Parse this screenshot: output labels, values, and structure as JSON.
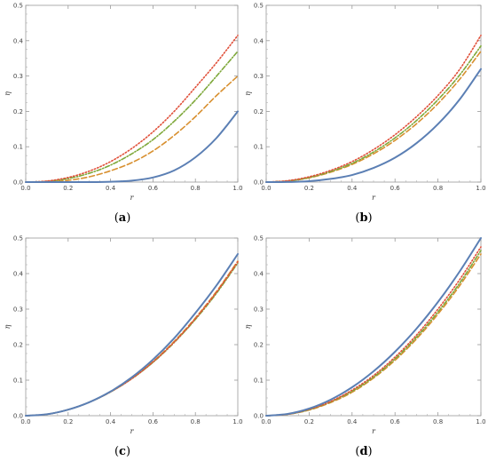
{
  "figure": {
    "panel_labels": [
      {
        "open": "(",
        "letter": "a",
        "close": ")"
      },
      {
        "open": "(",
        "letter": "b",
        "close": ")"
      },
      {
        "open": "(",
        "letter": "c",
        "close": ")"
      },
      {
        "open": "(",
        "letter": "d",
        "close": ")"
      }
    ]
  },
  "chart_data": [
    {
      "type": "line",
      "xlabel": "r",
      "ylabel": "η",
      "xlim": [
        0,
        1
      ],
      "ylim": [
        0,
        0.5
      ],
      "xticks": [
        0.0,
        0.2,
        0.4,
        0.6,
        0.8,
        1.0
      ],
      "xtick_labels": [
        "0.0",
        "0.2",
        "0.4",
        "0.6",
        "0.8",
        "1.0"
      ],
      "yticks": [
        0.0,
        0.1,
        0.2,
        0.3,
        0.4,
        0.5
      ],
      "ytick_labels": [
        "0.0",
        "0.1",
        "0.2",
        "0.3",
        "0.4",
        "0.5"
      ],
      "grid": false,
      "x": [
        0.0,
        0.1,
        0.2,
        0.3,
        0.4,
        0.5,
        0.6,
        0.7,
        0.8,
        0.9,
        1.0
      ],
      "series": [
        {
          "style": "solid",
          "color": "#5b7fb4",
          "values": [
            0,
            0,
            0,
            0,
            0.001,
            0.004,
            0.013,
            0.033,
            0.07,
            0.125,
            0.2
          ]
        },
        {
          "style": "dashed",
          "color": "#d89030",
          "values": [
            0,
            0.001,
            0.005,
            0.015,
            0.032,
            0.055,
            0.088,
            0.132,
            0.185,
            0.245,
            0.3
          ]
        },
        {
          "style": "dashdot",
          "color": "#7ea83a",
          "values": [
            0,
            0.002,
            0.01,
            0.025,
            0.048,
            0.08,
            0.12,
            0.172,
            0.232,
            0.3,
            0.37
          ]
        },
        {
          "style": "dotted",
          "color": "#e0503a",
          "values": [
            0,
            0.003,
            0.013,
            0.031,
            0.058,
            0.095,
            0.142,
            0.2,
            0.268,
            0.338,
            0.415
          ]
        }
      ]
    },
    {
      "type": "line",
      "xlabel": "r",
      "ylabel": "η",
      "xlim": [
        0,
        1
      ],
      "ylim": [
        0,
        0.5
      ],
      "xticks": [
        0.0,
        0.2,
        0.4,
        0.6,
        0.8,
        1.0
      ],
      "xtick_labels": [
        "0.0",
        "0.2",
        "0.4",
        "0.6",
        "0.8",
        "1.0"
      ],
      "yticks": [
        0.0,
        0.1,
        0.2,
        0.3,
        0.4,
        0.5
      ],
      "ytick_labels": [
        "0.0",
        "0.1",
        "0.2",
        "0.3",
        "0.4",
        "0.5"
      ],
      "grid": false,
      "x": [
        0.0,
        0.1,
        0.2,
        0.3,
        0.4,
        0.5,
        0.6,
        0.7,
        0.8,
        0.9,
        1.0
      ],
      "series": [
        {
          "style": "solid",
          "color": "#5b7fb4",
          "values": [
            0,
            0.0003,
            0.0026,
            0.009,
            0.02,
            0.04,
            0.069,
            0.11,
            0.164,
            0.233,
            0.32
          ]
        },
        {
          "style": "dashed",
          "color": "#d89030",
          "values": [
            0,
            0.003,
            0.012,
            0.028,
            0.05,
            0.08,
            0.118,
            0.165,
            0.222,
            0.29,
            0.37
          ]
        },
        {
          "style": "dashdot",
          "color": "#7ea83a",
          "values": [
            0,
            0.003,
            0.013,
            0.03,
            0.053,
            0.085,
            0.125,
            0.174,
            0.233,
            0.302,
            0.385
          ]
        },
        {
          "style": "dotted",
          "color": "#e0503a",
          "values": [
            0,
            0.004,
            0.015,
            0.033,
            0.058,
            0.092,
            0.134,
            0.185,
            0.245,
            0.318,
            0.415
          ]
        }
      ]
    },
    {
      "type": "line",
      "xlabel": "r",
      "ylabel": "η",
      "xlim": [
        0,
        1
      ],
      "ylim": [
        0,
        0.5
      ],
      "xticks": [
        0.0,
        0.2,
        0.4,
        0.6,
        0.8,
        1.0
      ],
      "xtick_labels": [
        "0.0",
        "0.2",
        "0.4",
        "0.6",
        "0.8",
        "1.0"
      ],
      "yticks": [
        0.0,
        0.1,
        0.2,
        0.3,
        0.4,
        0.5
      ],
      "ytick_labels": [
        "0.0",
        "0.1",
        "0.2",
        "0.3",
        "0.4",
        "0.5"
      ],
      "grid": false,
      "x": [
        0.0,
        0.1,
        0.2,
        0.3,
        0.4,
        0.5,
        0.6,
        0.7,
        0.8,
        0.9,
        1.0
      ],
      "series": [
        {
          "style": "solid",
          "color": "#5b7fb4",
          "values": [
            0,
            0.004,
            0.017,
            0.038,
            0.068,
            0.108,
            0.158,
            0.218,
            0.289,
            0.367,
            0.455
          ]
        },
        {
          "style": "dashed",
          "color": "#d89030",
          "values": [
            0,
            0.004,
            0.017,
            0.038,
            0.067,
            0.105,
            0.152,
            0.209,
            0.275,
            0.35,
            0.435
          ]
        },
        {
          "style": "dashdot",
          "color": "#7ea83a",
          "values": [
            0,
            0.004,
            0.017,
            0.038,
            0.067,
            0.104,
            0.15,
            0.206,
            0.271,
            0.345,
            0.43
          ]
        },
        {
          "style": "dotted",
          "color": "#e0503a",
          "values": [
            0,
            0.004,
            0.017,
            0.038,
            0.067,
            0.104,
            0.151,
            0.207,
            0.273,
            0.348,
            0.433
          ]
        }
      ]
    },
    {
      "type": "line",
      "xlabel": "r",
      "ylabel": "η",
      "xlim": [
        0,
        1
      ],
      "ylim": [
        0,
        0.5
      ],
      "xticks": [
        0.0,
        0.2,
        0.4,
        0.6,
        0.8,
        1.0
      ],
      "xtick_labels": [
        "0.0",
        "0.2",
        "0.4",
        "0.6",
        "0.8",
        "1.0"
      ],
      "yticks": [
        0.0,
        0.1,
        0.2,
        0.3,
        0.4,
        0.5
      ],
      "ytick_labels": [
        "0.0",
        "0.1",
        "0.2",
        "0.3",
        "0.4",
        "0.5"
      ],
      "grid": false,
      "x": [
        0.0,
        0.1,
        0.2,
        0.3,
        0.4,
        0.5,
        0.6,
        0.7,
        0.8,
        0.9,
        1.0
      ],
      "series": [
        {
          "style": "solid",
          "color": "#5b7fb4",
          "values": [
            0,
            0.005,
            0.02,
            0.045,
            0.08,
            0.125,
            0.18,
            0.245,
            0.32,
            0.405,
            0.5
          ]
        },
        {
          "style": "dashed",
          "color": "#d89030",
          "values": [
            0,
            0.004,
            0.016,
            0.037,
            0.066,
            0.106,
            0.156,
            0.216,
            0.286,
            0.365,
            0.455
          ]
        },
        {
          "style": "dashdot",
          "color": "#7ea83a",
          "values": [
            0,
            0.004,
            0.017,
            0.039,
            0.069,
            0.109,
            0.16,
            0.221,
            0.292,
            0.372,
            0.465
          ]
        },
        {
          "style": "dotted",
          "color": "#e0503a",
          "values": [
            0,
            0.004,
            0.018,
            0.04,
            0.072,
            0.113,
            0.165,
            0.227,
            0.3,
            0.382,
            0.475
          ]
        }
      ]
    }
  ]
}
